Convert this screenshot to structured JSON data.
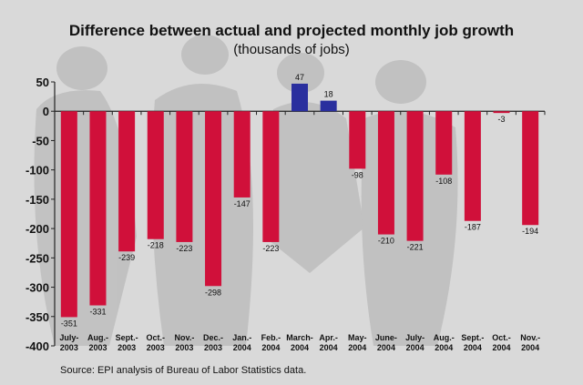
{
  "chart_data": {
    "type": "bar",
    "title": "Difference between actual and projected monthly job growth",
    "subtitle": "(thousands of jobs)",
    "source": "Source: EPI analysis of Bureau of Labor Statistics data.",
    "categories": [
      [
        "July-",
        "2003"
      ],
      [
        "Aug.-",
        "2003"
      ],
      [
        "Sept.-",
        "2003"
      ],
      [
        "Oct.-",
        "2003"
      ],
      [
        "Nov.-",
        "2003"
      ],
      [
        "Dec.-",
        "2003"
      ],
      [
        "Jan.-",
        "2004"
      ],
      [
        "Feb.-",
        "2004"
      ],
      [
        "March-",
        "2004"
      ],
      [
        "Apr.-",
        "2004"
      ],
      [
        "May-",
        "2004"
      ],
      [
        "June-",
        "2004"
      ],
      [
        "July-",
        "2004"
      ],
      [
        "Aug.-",
        "2004"
      ],
      [
        "Sept.-",
        "2004"
      ],
      [
        "Oct.-",
        "2004"
      ],
      [
        "Nov.-",
        "2004"
      ]
    ],
    "values": [
      -351,
      -331,
      -239,
      -218,
      -223,
      -298,
      -147,
      -223,
      47,
      18,
      -98,
      -210,
      -221,
      -108,
      -187,
      -3,
      -194
    ],
    "ylim": [
      -400,
      50
    ],
    "yticks": [
      50,
      0,
      -50,
      -100,
      -150,
      -200,
      -250,
      -300,
      -350,
      -400
    ],
    "colors": {
      "negative": "#d0103a",
      "positive": "#2a2f9e",
      "axis": "#222222"
    },
    "grid": false,
    "legend": "none"
  }
}
